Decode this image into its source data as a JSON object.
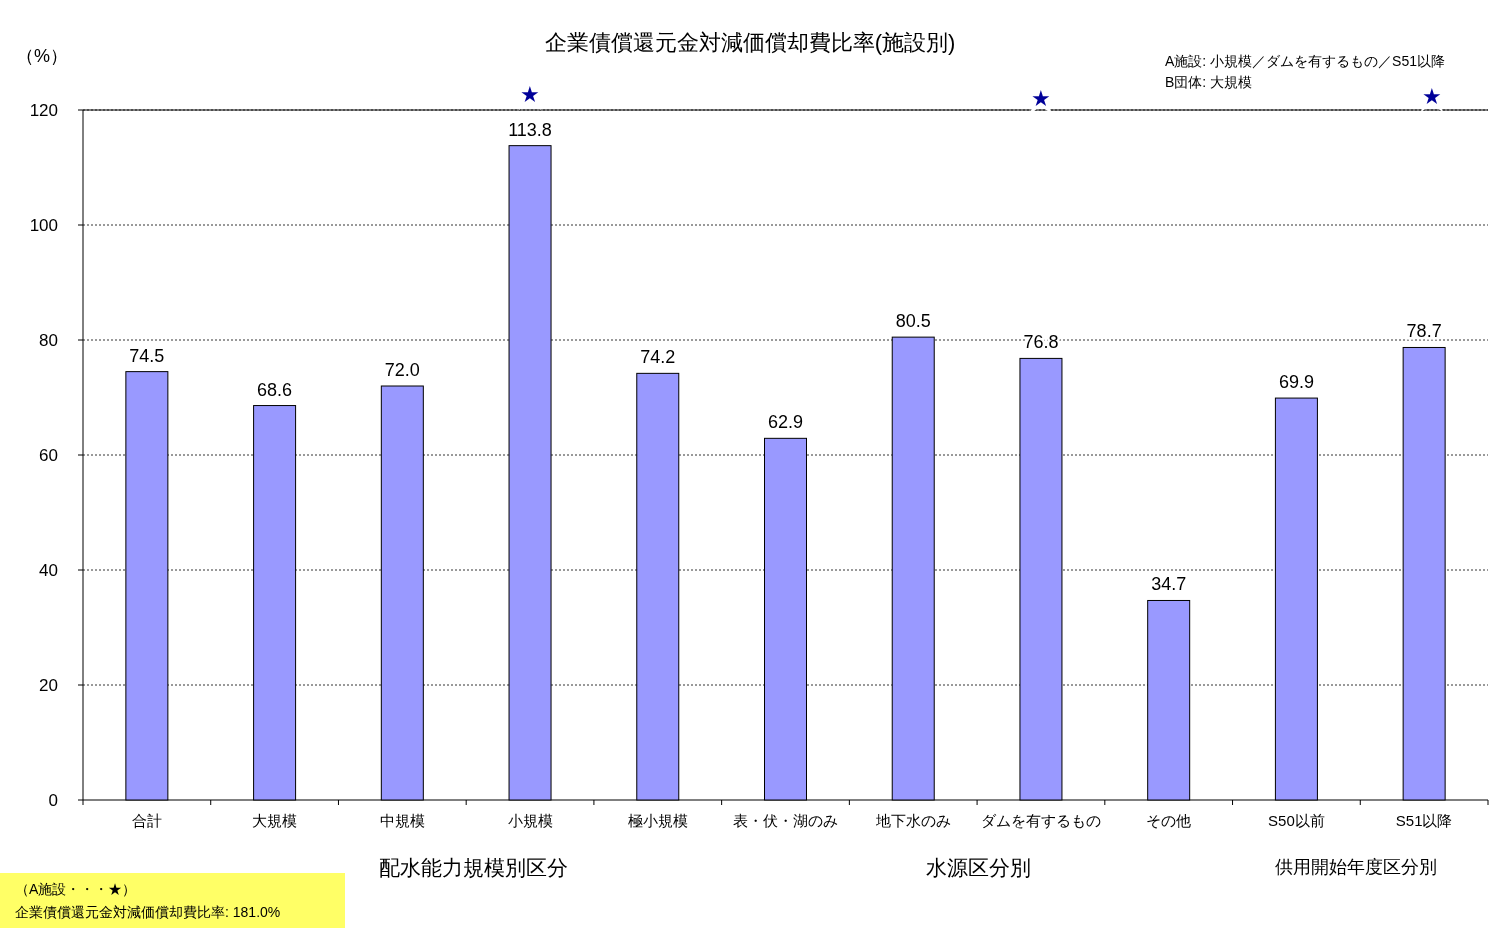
{
  "chart_data": {
    "type": "bar",
    "title": "企業債償還元金対減価償却費比率(施設別)",
    "ylabel": "（%）",
    "categories": [
      "合計",
      "大規模",
      "中規模",
      "小規模",
      "極小規模",
      "表・伏・湖のみ",
      "地下水のみ",
      "ダムを有するもの",
      "その他",
      "S50以前",
      "S51以降"
    ],
    "values": [
      74.5,
      68.6,
      72.0,
      113.8,
      74.2,
      62.9,
      80.5,
      76.8,
      34.7,
      69.9,
      78.7
    ],
    "value_labels": [
      "74.5",
      "68.6",
      "72.0",
      "113.8",
      "74.2",
      "62.9",
      "80.5",
      "76.8",
      "34.7",
      "69.9",
      "78.7"
    ],
    "color": "#9999ff",
    "ylim": [
      0,
      120
    ],
    "yticks": [
      0,
      20,
      40,
      60,
      80,
      100,
      120
    ],
    "grid": "y",
    "annotations": [
      "★",
      "★",
      "★",
      "配水能力規模別区分",
      "水源区分別",
      "供用開始年度区分別",
      "A施設: 小規模／ダムを有するもの／S51以降",
      "B団体: 大規模",
      "（A施設・・・★）",
      "企業債償還元金対減価償却費比率: 181.0%"
    ]
  }
}
